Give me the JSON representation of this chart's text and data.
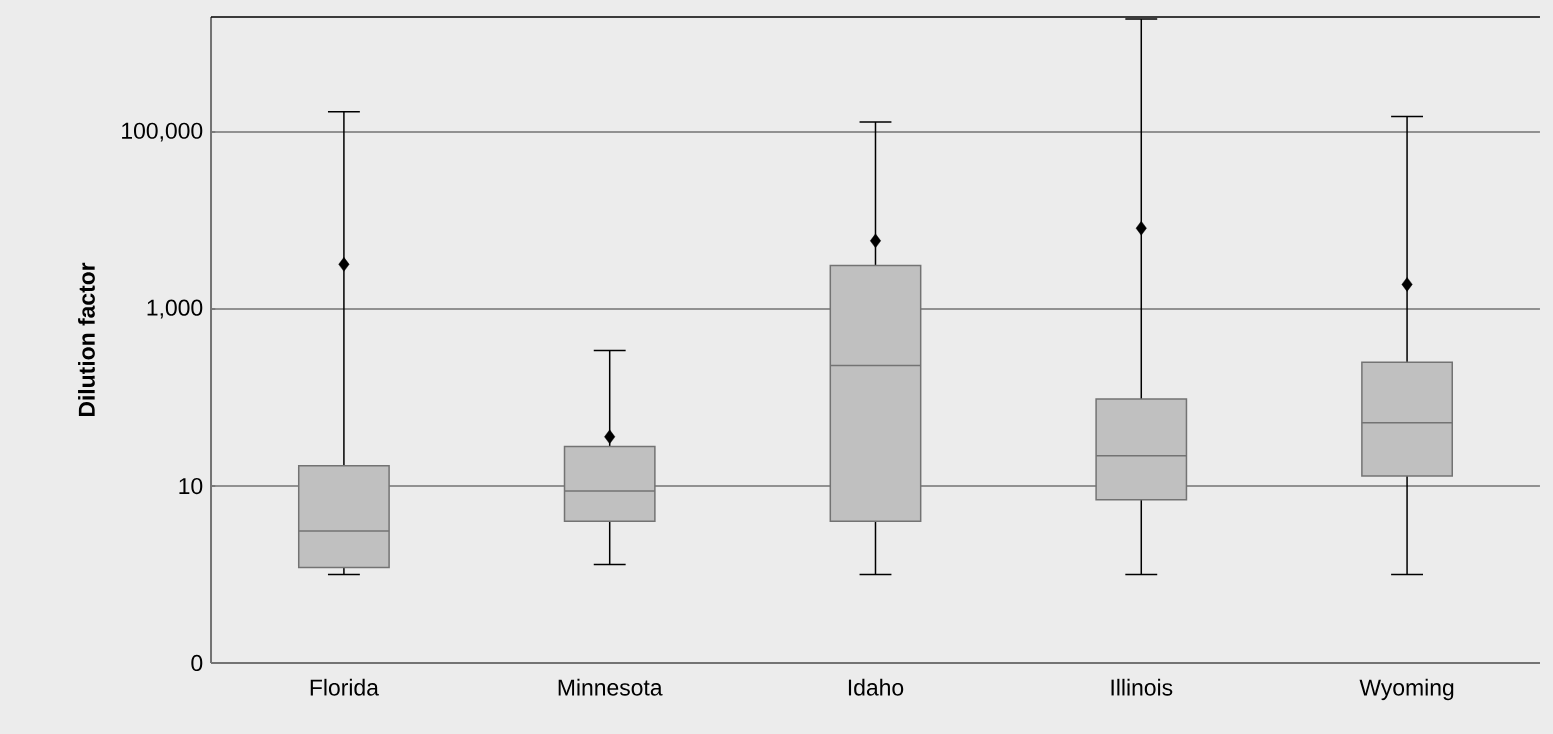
{
  "chart_data": {
    "type": "box",
    "ylabel": "Dilution factor",
    "categories": [
      "Florida",
      "Minnesota",
      "Idaho",
      "Illinois",
      "Wyoming"
    ],
    "boxes": [
      {
        "low": 1,
        "q1": 1.2,
        "median": 3.1,
        "q3": 17,
        "high": 170000,
        "mean": 3200
      },
      {
        "low": 1.3,
        "q1": 4,
        "median": 8.8,
        "q3": 28,
        "high": 340,
        "mean": 36
      },
      {
        "low": 1,
        "q1": 4,
        "median": 230,
        "q3": 3100,
        "high": 130000,
        "mean": 5900
      },
      {
        "low": 1,
        "q1": 7,
        "median": 22,
        "q3": 96,
        "high": 1900000,
        "mean": 8200
      },
      {
        "low": 1,
        "q1": 13,
        "median": 52,
        "q3": 250,
        "high": 150000,
        "mean": 1900
      }
    ],
    "color": "#c0c0c0",
    "log": "y",
    "ylim": [
      0.1,
      2000000
    ],
    "yticks": [
      {
        "value": 0.1,
        "label": "0"
      },
      {
        "value": 10,
        "label": "10"
      },
      {
        "value": 1000,
        "label": "1,000"
      },
      {
        "value": 100000,
        "label": "100,000"
      }
    ],
    "grid": "y",
    "marker": "diamond"
  }
}
